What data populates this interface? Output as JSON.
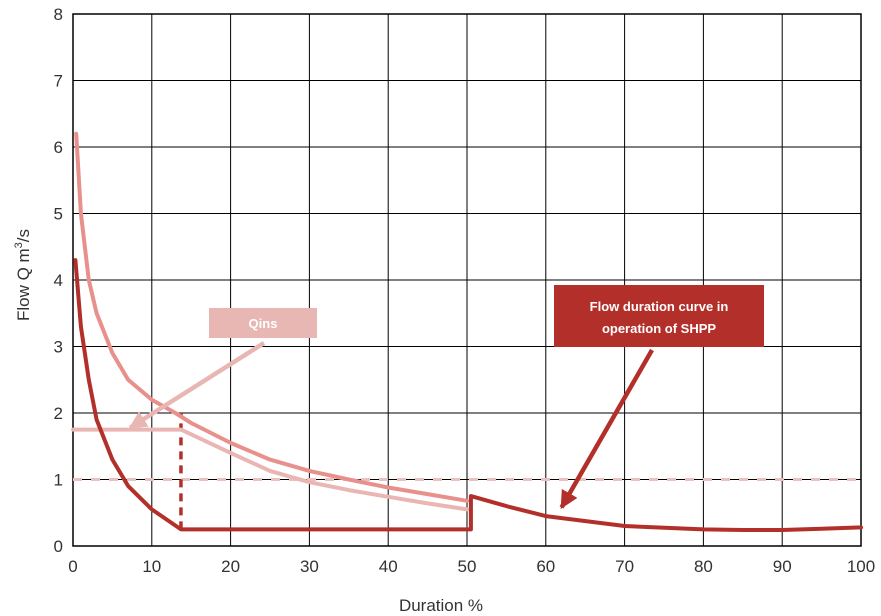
{
  "chart_data": {
    "type": "line",
    "xlabel": "Duration %",
    "ylabel": "Flow Q m",
    "ylabel_superscript": "3",
    "ylabel_suffix": "/s",
    "xlim": [
      0,
      100
    ],
    "ylim": [
      0,
      8
    ],
    "xticks": [
      0,
      10,
      20,
      30,
      40,
      50,
      60,
      70,
      80,
      90,
      100
    ],
    "yticks": [
      0,
      1,
      2,
      3,
      4,
      5,
      6,
      7,
      8
    ],
    "grid": true,
    "series": [
      {
        "key": "natural",
        "color": "#e8908c",
        "points": [
          [
            0.4,
            6.2
          ],
          [
            1,
            5.0
          ],
          [
            2,
            4.0
          ],
          [
            3,
            3.5
          ],
          [
            5,
            2.9
          ],
          [
            7,
            2.5
          ],
          [
            10,
            2.2
          ],
          [
            13,
            2.0
          ],
          [
            15,
            1.85
          ],
          [
            20,
            1.55
          ],
          [
            25,
            1.3
          ],
          [
            30,
            1.13
          ],
          [
            35,
            1.0
          ],
          [
            40,
            0.88
          ],
          [
            45,
            0.78
          ],
          [
            50,
            0.68
          ]
        ]
      },
      {
        "key": "reference",
        "color": "#eab6b4",
        "points": [
          [
            0,
            1.75
          ],
          [
            13.7,
            1.75
          ],
          [
            20,
            1.4
          ],
          [
            25,
            1.13
          ],
          [
            30,
            0.96
          ],
          [
            35,
            0.84
          ],
          [
            40,
            0.74
          ],
          [
            45,
            0.64
          ],
          [
            50,
            0.55
          ]
        ]
      },
      {
        "key": "operation",
        "color": "#b3302a",
        "points": [
          [
            0.3,
            4.3
          ],
          [
            1,
            3.3
          ],
          [
            2,
            2.5
          ],
          [
            3,
            1.9
          ],
          [
            5,
            1.3
          ],
          [
            7,
            0.9
          ],
          [
            10,
            0.55
          ],
          [
            13.7,
            0.25
          ],
          [
            50.5,
            0.25
          ],
          [
            50.5,
            0.75
          ],
          [
            55,
            0.6
          ],
          [
            60,
            0.45
          ],
          [
            70,
            0.3
          ],
          [
            80,
            0.25
          ],
          [
            85,
            0.24
          ],
          [
            90,
            0.24
          ],
          [
            95,
            0.26
          ],
          [
            100,
            0.28
          ]
        ]
      }
    ],
    "reference_lines": [
      {
        "key": "dashed-horizontal",
        "y": 1.0,
        "color": "#e9c2c0"
      },
      {
        "key": "dashed-vertical",
        "x": 13.7,
        "y_from": 0.25,
        "y_to": 2.0,
        "color": "#b3302a"
      }
    ],
    "annotations": [
      {
        "text": "Qins",
        "fill": "#e9b7b3",
        "arrow_to": [
          7,
          1.75
        ]
      },
      {
        "lines": [
          "Flow duration curve in",
          "operation of SHPP"
        ],
        "fill": "#b3302a",
        "arrow_to": [
          62,
          0.55
        ]
      }
    ]
  }
}
